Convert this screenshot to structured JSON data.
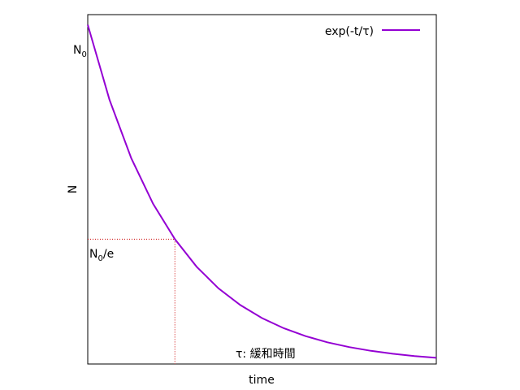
{
  "chart_data": {
    "type": "line",
    "title": "",
    "xlabel": "time",
    "ylabel": "N",
    "x": [
      0,
      0.25,
      0.5,
      0.75,
      1.0,
      1.25,
      1.5,
      1.75,
      2.0,
      2.25,
      2.5,
      2.75,
      3.0,
      3.25,
      3.5,
      3.75,
      4.0
    ],
    "series": [
      {
        "name": "exp(-t/τ)",
        "color": "#9400d3",
        "values": [
          1.0,
          0.7788,
          0.6065,
          0.4724,
          0.3679,
          0.2865,
          0.2231,
          0.1738,
          0.1353,
          0.1054,
          0.0821,
          0.0639,
          0.0498,
          0.0388,
          0.0302,
          0.0235,
          0.0183
        ]
      }
    ],
    "xlim": [
      0,
      4.0
    ],
    "ylim": [
      0,
      1.03
    ],
    "xticks": [],
    "yticks": [],
    "legend": "top-right",
    "grid": false,
    "annotations": {
      "n0": {
        "sub_main": "N",
        "sub": "0",
        "suffix": "",
        "y": 1.0
      },
      "n0e": {
        "sub_main": "N",
        "sub": "0",
        "suffix": "/e",
        "y": 0.3679
      },
      "tau": {
        "text": "τ: 緩和時間",
        "x": 1.0
      }
    },
    "guide_color": "#cc0000"
  }
}
